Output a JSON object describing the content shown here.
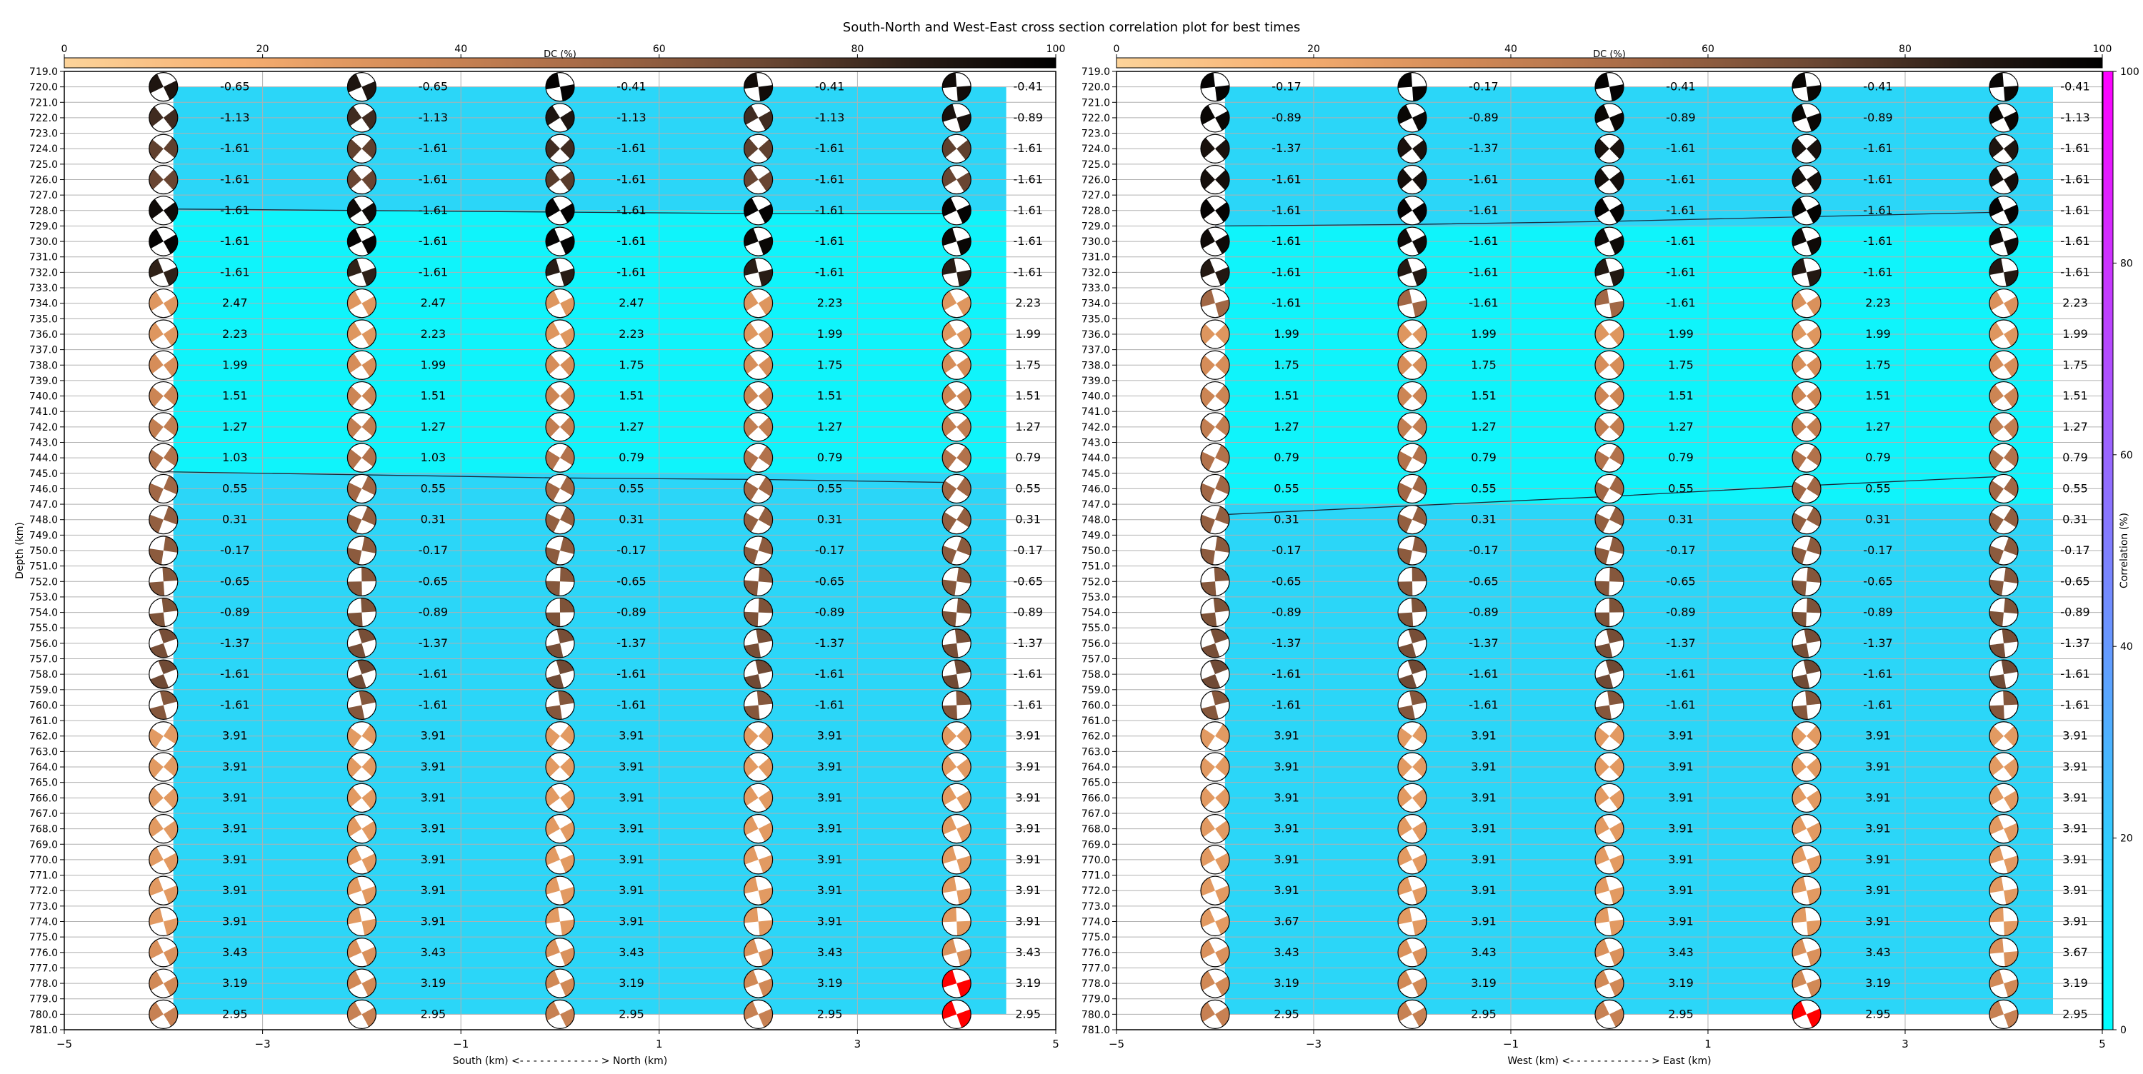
{
  "figure": {
    "title": "South-North and West-East cross section correlation plot for best times"
  },
  "colors": {
    "high_corr": "#0ff4fb",
    "low_corr": "#2bd6f8",
    "frame": "#000000",
    "grid": "#b0b0b0",
    "highlight_beachball": "#ff0000",
    "dc_cmap": [
      "#fdd49a",
      "#f6ae70",
      "#d38a57",
      "#a86b47",
      "#6e4934",
      "#2a1d16",
      "#000000"
    ],
    "corr_cmap": [
      "#00ffff",
      "#ff00ff"
    ]
  },
  "chart_data": [
    {
      "type": "scatter",
      "panel": "south-north",
      "xlabel": "South (km) <- - - - - - - - - - - - > North (km)",
      "ylabel": "Depth (km)",
      "xlim": [
        -5,
        5
      ],
      "ylim": [
        781,
        719
      ],
      "x_ticks": [
        "−5",
        "−3",
        "−1",
        "1",
        "3",
        "5"
      ],
      "x_tick_values": [
        -5,
        -3,
        -1,
        1,
        3,
        5
      ],
      "y_tick_start": 719,
      "y_tick_end": 781,
      "x": [
        -4,
        -2,
        0,
        2,
        4
      ],
      "depths": [
        720,
        722,
        724,
        726,
        728,
        730,
        732,
        734,
        736,
        738,
        740,
        742,
        744,
        746,
        748,
        750,
        752,
        754,
        756,
        758,
        760,
        762,
        764,
        766,
        768,
        770,
        772,
        774,
        776,
        778,
        780
      ],
      "values": [
        [
          -0.65,
          -0.65,
          -0.41,
          -0.41,
          -0.41
        ],
        [
          -1.13,
          -1.13,
          -1.13,
          -1.13,
          -0.89
        ],
        [
          -1.61,
          -1.61,
          -1.61,
          -1.61,
          -1.61
        ],
        [
          -1.61,
          -1.61,
          -1.61,
          -1.61,
          -1.61
        ],
        [
          -1.61,
          -1.61,
          -1.61,
          -1.61,
          -1.61
        ],
        [
          -1.61,
          -1.61,
          -1.61,
          -1.61,
          -1.61
        ],
        [
          -1.61,
          -1.61,
          -1.61,
          -1.61,
          -1.61
        ],
        [
          2.47,
          2.47,
          2.47,
          2.23,
          2.23
        ],
        [
          2.23,
          2.23,
          2.23,
          1.99,
          1.99
        ],
        [
          1.99,
          1.99,
          1.75,
          1.75,
          1.75
        ],
        [
          1.51,
          1.51,
          1.51,
          1.51,
          1.51
        ],
        [
          1.27,
          1.27,
          1.27,
          1.27,
          1.27
        ],
        [
          1.03,
          1.03,
          0.79,
          0.79,
          0.79
        ],
        [
          0.55,
          0.55,
          0.55,
          0.55,
          0.55
        ],
        [
          0.31,
          0.31,
          0.31,
          0.31,
          0.31
        ],
        [
          -0.17,
          -0.17,
          -0.17,
          -0.17,
          -0.17
        ],
        [
          -0.65,
          -0.65,
          -0.65,
          -0.65,
          -0.65
        ],
        [
          -0.89,
          -0.89,
          -0.89,
          -0.89,
          -0.89
        ],
        [
          -1.37,
          -1.37,
          -1.37,
          -1.37,
          -1.37
        ],
        [
          -1.61,
          -1.61,
          -1.61,
          -1.61,
          -1.61
        ],
        [
          -1.61,
          -1.61,
          -1.61,
          -1.61,
          -1.61
        ],
        [
          3.91,
          3.91,
          3.91,
          3.91,
          3.91
        ],
        [
          3.91,
          3.91,
          3.91,
          3.91,
          3.91
        ],
        [
          3.91,
          3.91,
          3.91,
          3.91,
          3.91
        ],
        [
          3.91,
          3.91,
          3.91,
          3.91,
          3.91
        ],
        [
          3.91,
          3.91,
          3.91,
          3.91,
          3.91
        ],
        [
          3.91,
          3.91,
          3.91,
          3.91,
          3.91
        ],
        [
          3.91,
          3.91,
          3.91,
          3.91,
          3.91
        ],
        [
          3.43,
          3.43,
          3.43,
          3.43,
          3.43
        ],
        [
          3.19,
          3.19,
          3.19,
          3.19,
          3.19
        ],
        [
          2.95,
          2.95,
          2.95,
          2.95,
          2.95
        ]
      ],
      "dc_percent": [
        [
          88,
          88,
          98,
          93,
          93
        ],
        [
          78,
          78,
          88,
          78,
          90
        ],
        [
          70,
          70,
          78,
          70,
          70
        ],
        [
          68,
          68,
          72,
          68,
          68
        ],
        [
          94,
          94,
          98,
          98,
          98
        ],
        [
          98,
          98,
          98,
          96,
          96
        ],
        [
          82,
          82,
          84,
          84,
          84
        ],
        [
          28,
          28,
          28,
          28,
          28
        ],
        [
          28,
          28,
          28,
          28,
          28
        ],
        [
          32,
          32,
          32,
          32,
          32
        ],
        [
          36,
          36,
          36,
          36,
          36
        ],
        [
          40,
          40,
          40,
          40,
          40
        ],
        [
          46,
          46,
          46,
          46,
          46
        ],
        [
          52,
          52,
          52,
          52,
          52
        ],
        [
          56,
          56,
          56,
          56,
          56
        ],
        [
          58,
          58,
          58,
          58,
          58
        ],
        [
          60,
          60,
          60,
          60,
          60
        ],
        [
          62,
          62,
          62,
          62,
          62
        ],
        [
          64,
          64,
          64,
          64,
          64
        ],
        [
          66,
          66,
          66,
          66,
          66
        ],
        [
          60,
          60,
          60,
          60,
          60
        ],
        [
          26,
          26,
          26,
          26,
          26
        ],
        [
          26,
          26,
          26,
          26,
          26
        ],
        [
          26,
          26,
          26,
          26,
          26
        ],
        [
          26,
          26,
          26,
          26,
          26
        ],
        [
          26,
          26,
          26,
          26,
          26
        ],
        [
          26,
          26,
          26,
          26,
          26
        ],
        [
          26,
          26,
          26,
          26,
          26
        ],
        [
          30,
          30,
          30,
          30,
          30
        ],
        [
          34,
          34,
          34,
          34,
          34
        ],
        [
          38,
          38,
          38,
          38,
          38
        ]
      ],
      "highlight": [
        [
          29,
          4
        ],
        [
          30,
          4
        ]
      ],
      "correlation_zones": [
        {
          "from_depth": 719,
          "to_depth": 728,
          "level": "low"
        },
        {
          "from_depth": 728,
          "to_depth": 745,
          "level": "high"
        },
        {
          "from_depth": 745,
          "to_depth": 781,
          "level": "low"
        }
      ],
      "contour_lines": [
        {
          "x": [
            -4,
            -2,
            0,
            2,
            4
          ],
          "depth": [
            727.9,
            728.0,
            728.1,
            728.2,
            728.2
          ]
        },
        {
          "x": [
            -4,
            -2,
            0,
            2,
            4
          ],
          "depth": [
            744.9,
            745.1,
            745.3,
            745.4,
            745.6
          ]
        }
      ],
      "dc_colorbar": {
        "label": "DC (%)",
        "range": [
          0,
          100
        ],
        "ticks": [
          0,
          20,
          40,
          60,
          80,
          100
        ]
      }
    },
    {
      "type": "scatter",
      "panel": "west-east",
      "xlabel": "West (km) <- - - - - - - - - - - - > East (km)",
      "xlim": [
        -5,
        5
      ],
      "ylim": [
        781,
        719
      ],
      "x_ticks": [
        "−5",
        "−3",
        "−1",
        "1",
        "3",
        "5"
      ],
      "x_tick_values": [
        -5,
        -3,
        -1,
        1,
        3,
        5
      ],
      "y_tick_start": 719,
      "y_tick_end": 781,
      "x": [
        -4,
        -2,
        0,
        2,
        4
      ],
      "depths": [
        720,
        722,
        724,
        726,
        728,
        730,
        732,
        734,
        736,
        738,
        740,
        742,
        744,
        746,
        748,
        750,
        752,
        754,
        756,
        758,
        760,
        762,
        764,
        766,
        768,
        770,
        772,
        774,
        776,
        778,
        780
      ],
      "values": [
        [
          -0.17,
          -0.17,
          -0.41,
          -0.41,
          -0.41
        ],
        [
          -0.89,
          -0.89,
          -0.89,
          -0.89,
          -1.13
        ],
        [
          -1.37,
          -1.37,
          -1.61,
          -1.61,
          -1.61
        ],
        [
          -1.61,
          -1.61,
          -1.61,
          -1.61,
          -1.61
        ],
        [
          -1.61,
          -1.61,
          -1.61,
          -1.61,
          -1.61
        ],
        [
          -1.61,
          -1.61,
          -1.61,
          -1.61,
          -1.61
        ],
        [
          -1.61,
          -1.61,
          -1.61,
          -1.61,
          -1.61
        ],
        [
          -1.61,
          -1.61,
          -1.61,
          2.23,
          2.23
        ],
        [
          1.99,
          1.99,
          1.99,
          1.99,
          1.99
        ],
        [
          1.75,
          1.75,
          1.75,
          1.75,
          1.75
        ],
        [
          1.51,
          1.51,
          1.51,
          1.51,
          1.51
        ],
        [
          1.27,
          1.27,
          1.27,
          1.27,
          1.27
        ],
        [
          0.79,
          0.79,
          0.79,
          0.79,
          0.79
        ],
        [
          0.55,
          0.55,
          0.55,
          0.55,
          0.55
        ],
        [
          0.31,
          0.31,
          0.31,
          0.31,
          0.31
        ],
        [
          -0.17,
          -0.17,
          -0.17,
          -0.17,
          -0.17
        ],
        [
          -0.65,
          -0.65,
          -0.65,
          -0.65,
          -0.65
        ],
        [
          -0.89,
          -0.89,
          -0.89,
          -0.89,
          -0.89
        ],
        [
          -1.37,
          -1.37,
          -1.37,
          -1.37,
          -1.37
        ],
        [
          -1.61,
          -1.61,
          -1.61,
          -1.61,
          -1.61
        ],
        [
          -1.61,
          -1.61,
          -1.61,
          -1.61,
          -1.61
        ],
        [
          3.91,
          3.91,
          3.91,
          3.91,
          3.91
        ],
        [
          3.91,
          3.91,
          3.91,
          3.91,
          3.91
        ],
        [
          3.91,
          3.91,
          3.91,
          3.91,
          3.91
        ],
        [
          3.91,
          3.91,
          3.91,
          3.91,
          3.91
        ],
        [
          3.91,
          3.91,
          3.91,
          3.91,
          3.91
        ],
        [
          3.91,
          3.91,
          3.91,
          3.91,
          3.91
        ],
        [
          3.67,
          3.91,
          3.91,
          3.91,
          3.91
        ],
        [
          3.43,
          3.43,
          3.43,
          3.43,
          3.67
        ],
        [
          3.19,
          3.19,
          3.19,
          3.19,
          3.19
        ],
        [
          2.95,
          2.95,
          2.95,
          2.95,
          2.95
        ]
      ],
      "dc_percent": [
        [
          98,
          98,
          98,
          96,
          96
        ],
        [
          96,
          96,
          96,
          96,
          96
        ],
        [
          90,
          90,
          90,
          90,
          88
        ],
        [
          92,
          92,
          92,
          92,
          92
        ],
        [
          98,
          98,
          98,
          98,
          98
        ],
        [
          94,
          94,
          94,
          94,
          94
        ],
        [
          86,
          86,
          86,
          86,
          86
        ],
        [
          52,
          52,
          52,
          30,
          30
        ],
        [
          28,
          28,
          28,
          28,
          28
        ],
        [
          32,
          32,
          32,
          32,
          32
        ],
        [
          36,
          36,
          36,
          36,
          36
        ],
        [
          40,
          40,
          40,
          40,
          40
        ],
        [
          46,
          46,
          46,
          46,
          46
        ],
        [
          52,
          52,
          52,
          52,
          52
        ],
        [
          56,
          56,
          56,
          56,
          56
        ],
        [
          58,
          58,
          58,
          58,
          58
        ],
        [
          60,
          60,
          60,
          60,
          60
        ],
        [
          62,
          62,
          62,
          62,
          62
        ],
        [
          64,
          64,
          64,
          64,
          64
        ],
        [
          66,
          66,
          66,
          66,
          66
        ],
        [
          60,
          60,
          60,
          60,
          60
        ],
        [
          26,
          26,
          26,
          26,
          26
        ],
        [
          26,
          26,
          26,
          26,
          26
        ],
        [
          26,
          26,
          26,
          26,
          26
        ],
        [
          26,
          26,
          26,
          26,
          26
        ],
        [
          26,
          26,
          26,
          26,
          26
        ],
        [
          26,
          26,
          26,
          26,
          26
        ],
        [
          26,
          26,
          26,
          26,
          26
        ],
        [
          30,
          30,
          30,
          30,
          30
        ],
        [
          34,
          34,
          34,
          34,
          34
        ],
        [
          38,
          38,
          38,
          38,
          38
        ]
      ],
      "highlight": [
        [
          30,
          3
        ]
      ],
      "correlation_zones": [
        {
          "from_depth": 719,
          "to_depth": 729,
          "level": "low"
        },
        {
          "from_depth": 729,
          "to_depth": 747,
          "level": "high"
        },
        {
          "from_depth": 747,
          "to_depth": 781,
          "level": "low"
        }
      ],
      "contour_lines": [
        {
          "x": [
            -4,
            -2,
            0,
            2,
            4
          ],
          "depth": [
            729.0,
            728.9,
            728.7,
            728.4,
            728.1
          ]
        },
        {
          "x": [
            -4,
            -2,
            0,
            2,
            4
          ],
          "depth": [
            747.7,
            747.1,
            746.5,
            745.8,
            745.2
          ]
        }
      ],
      "dc_colorbar": {
        "label": "DC (%)",
        "range": [
          0,
          100
        ],
        "ticks": [
          0,
          20,
          40,
          60,
          80,
          100
        ]
      },
      "correlation_colorbar": {
        "label": "Correlation (%)",
        "range": [
          0,
          100
        ],
        "ticks": [
          0,
          20,
          40,
          60,
          80,
          100
        ]
      }
    }
  ]
}
